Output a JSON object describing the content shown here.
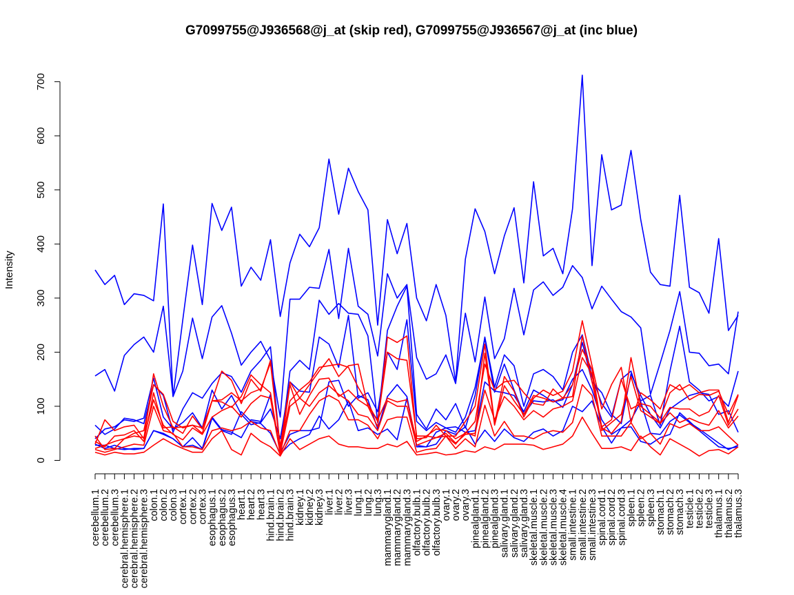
{
  "chart_data": {
    "type": "line",
    "title": "G7099755@J936568@j_at (skip red), G7099755@J936567@j_at (inc blue)",
    "xlabel": "",
    "ylabel": "Intensity",
    "ylim": [
      0,
      710
    ],
    "yticks": [
      0,
      100,
      200,
      300,
      400,
      500,
      600,
      700
    ],
    "grid": false,
    "legend": "none",
    "colors": {
      "skip": "#ff0000",
      "inc": "#0000ff",
      "axis": "#000000"
    },
    "categories": [
      "cerebellum.1",
      "cerebellum.2",
      "cerebellum.3",
      "cerebral.hemisphere.1",
      "cerebral.hemisphere.2",
      "cerebral.hemisphere.3",
      "colon.1",
      "colon.2",
      "colon.3",
      "cortex.1",
      "cortex.2",
      "cortex.3",
      "esophagus.1",
      "esophagus.2",
      "esophagus.3",
      "heart.1",
      "heart.2",
      "heart.3",
      "hind.brain.1",
      "hind.brain.2",
      "hind.brain.3",
      "kidney.1",
      "kidney.2",
      "kidney.3",
      "liver.1",
      "liver.2",
      "liver.3",
      "lung.1",
      "lung.2",
      "lung.3",
      "mammarygland.1",
      "mammarygland.2",
      "mammarygland.3",
      "olfactory.bulb.1",
      "olfactory.bulb.2",
      "olfactory.bulb.3",
      "ovary.1",
      "ovary.2",
      "ovary.3",
      "pinealgland.1",
      "pinealgland.2",
      "pinealgland.3",
      "salivary.gland.1",
      "salivary.gland.2",
      "salivary.gland.3",
      "skeletal.muscle.1",
      "skeletal.muscle.2",
      "skeletal.muscle.3",
      "skeletal.muscle.4",
      "small.intestine.1",
      "small.intestine.2",
      "small.intestine.3",
      "spinal.cord.1",
      "spinal.cord.2",
      "spinal.cord.3",
      "spleen.1",
      "spleen.2",
      "spleen.3",
      "stomach.1",
      "stomach.2",
      "stomach.3",
      "testicle.1",
      "testicle.2",
      "testicle.3",
      "thalamus.1",
      "thalamus.2",
      "thalamus.3"
    ],
    "x_tick_labels": [
      "cerebellum.1",
      "cerebellum.2",
      "cerebellum.3",
      "cerebral.hemisphere.1",
      "cerebral.hemisphere.2",
      "cerebral.hemisphere.3",
      "colon.1",
      "colon.2",
      "colon.3",
      "cortex.1",
      "cortex.2",
      "cortex.3",
      "esophagus.1",
      "esophagus.2",
      "esophagus.3",
      "heart.1",
      "heart.2",
      "heart.3",
      "hind.brain.1",
      "hind.brain.2",
      "hind.brain.3",
      "kidney.1",
      "kidney.2",
      "kidney.3",
      "liver.1",
      "liver.2",
      "liver.3",
      "lung.1",
      "lung.2",
      "lung.3",
      "mammarygland.1",
      "mammarygland.2",
      "mammarygland.3",
      "olfactory.bulb.1",
      "olfactory.bulb.2",
      "olfactory.bulb.3",
      "ovary.1",
      "ovary.2",
      "ovary.3",
      "pinealgland.1",
      "pinealgland.2",
      "pinealgland.3",
      "salivary.gland.1",
      "salivary.gland.2",
      "salivary.gland.3",
      "skeletal.muscle.1",
      "skeletal.muscle.2",
      "skeletal.muscle.3",
      "skeletal.muscle.4",
      "small.intestine.1",
      "small.intestine.2",
      "small.intestine.3",
      "spinal.cord.1",
      "spinal.cord.2",
      "spinal.cord.3",
      "spleen.1",
      "spleen.2",
      "spleen.3",
      "stomach.1",
      "stomach.2",
      "stomach.3",
      "testicle.1",
      "testicle.2",
      "testicle.3",
      "thalamus.1",
      "thalamus.2",
      "thalamus.3"
    ],
    "series": [
      {
        "group": "inc",
        "values": [
          352,
          325,
          342,
          288,
          308,
          305,
          295,
          474,
          118,
          260,
          398,
          288,
          475,
          425,
          468,
          322,
          357,
          333,
          408,
          266,
          365,
          418,
          395,
          430,
          557,
          455,
          540,
          497,
          463,
          250,
          445,
          382,
          438,
          300,
          258,
          325,
          268,
          145,
          372,
          465,
          423,
          345,
          415,
          467,
          328,
          515,
          378,
          392,
          345,
          465,
          712,
          360,
          565,
          463,
          472,
          573,
          445,
          348,
          325,
          322,
          490,
          320,
          310,
          272,
          410,
          240,
          268
        ]
      },
      {
        "group": "inc",
        "values": [
          156,
          168,
          128,
          194,
          214,
          228,
          200,
          285,
          118,
          165,
          263,
          188,
          265,
          286,
          235,
          176,
          200,
          220,
          185,
          80,
          298,
          298,
          320,
          318,
          390,
          262,
          392,
          285,
          270,
          193,
          345,
          300,
          325,
          190,
          150,
          160,
          195,
          142,
          272,
          182,
          302,
          188,
          225,
          318,
          232,
          315,
          330,
          305,
          320,
          360,
          338,
          280,
          322,
          298,
          275,
          265,
          245,
          122,
          180,
          240,
          312,
          200,
          198,
          175,
          178,
          160,
          275
        ]
      },
      {
        "group": "inc",
        "values": [
          65,
          48,
          58,
          78,
          75,
          68,
          140,
          120,
          52,
          95,
          125,
          115,
          142,
          162,
          155,
          126,
          165,
          185,
          210,
          20,
          165,
          185,
          168,
          296,
          270,
          290,
          272,
          270,
          230,
          70,
          240,
          285,
          322,
          85,
          58,
          95,
          75,
          105,
          60,
          120,
          228,
          135,
          195,
          175,
          100,
          160,
          168,
          155,
          130,
          200,
          232,
          155,
          105,
          80,
          150,
          165,
          110,
          120,
          65,
          165,
          248,
          145,
          130,
          110,
          118,
          100,
          165
        ]
      },
      {
        "group": "inc",
        "values": [
          40,
          58,
          62,
          75,
          72,
          78,
          152,
          80,
          58,
          70,
          88,
          60,
          130,
          95,
          120,
          85,
          66,
          70,
          95,
          40,
          145,
          128,
          126,
          228,
          215,
          172,
          268,
          115,
          125,
          90,
          200,
          168,
          260,
          72,
          55,
          70,
          60,
          52,
          80,
          135,
          225,
          126,
          178,
          130,
          85,
          110,
          108,
          112,
          98,
          140,
          218,
          145,
          125,
          85,
          68,
          160,
          120,
          85,
          60,
          95,
          108,
          120,
          125,
          122,
          85,
          92,
          52
        ]
      },
      {
        "group": "inc",
        "values": [
          30,
          22,
          28,
          22,
          20,
          22,
          55,
          48,
          40,
          25,
          42,
          22,
          80,
          57,
          52,
          42,
          75,
          72,
          122,
          14,
          48,
          55,
          55,
          60,
          145,
          148,
          100,
          120,
          112,
          58,
          118,
          140,
          118,
          28,
          25,
          52,
          60,
          62,
          52,
          55,
          145,
          128,
          125,
          120,
          90,
          130,
          120,
          108,
          112,
          150,
          168,
          130,
          75,
          48,
          60,
          75,
          108,
          50,
          48,
          72,
          84,
          70,
          58,
          45,
          32,
          20,
          28
        ]
      },
      {
        "group": "inc",
        "values": [
          28,
          28,
          22,
          20,
          22,
          22,
          55,
          50,
          40,
          25,
          28,
          20,
          78,
          55,
          48,
          90,
          72,
          68,
          50,
          12,
          30,
          40,
          48,
          82,
          58,
          75,
          110,
          55,
          60,
          48,
          58,
          38,
          115,
          25,
          25,
          30,
          55,
          48,
          62,
          30,
          56,
          35,
          58,
          42,
          35,
          52,
          58,
          45,
          55,
          100,
          90,
          110,
          62,
          32,
          60,
          62,
          35,
          30,
          42,
          48,
          88,
          72,
          55,
          40,
          25,
          22,
          25
        ]
      },
      {
        "group": "skip",
        "values": [
          22,
          28,
          35,
          40,
          50,
          55,
          140,
          122,
          72,
          60,
          65,
          50,
          110,
          165,
          148,
          105,
          150,
          128,
          185,
          25,
          145,
          115,
          140,
          165,
          188,
          155,
          175,
          178,
          100,
          62,
          228,
          218,
          230,
          40,
          42,
          65,
          45,
          45,
          72,
          100,
          215,
          68,
          155,
          128,
          80,
          115,
          130,
          120,
          128,
          165,
          258,
          175,
          95,
          140,
          172,
          70,
          125,
          112,
          95,
          140,
          130,
          140,
          125,
          130,
          130,
          70,
          120
        ]
      },
      {
        "group": "skip",
        "values": [
          30,
          75,
          55,
          62,
          65,
          40,
          160,
          100,
          60,
          62,
          65,
          60,
          110,
          112,
          125,
          110,
          125,
          132,
          180,
          22,
          110,
          130,
          145,
          172,
          175,
          178,
          172,
          135,
          105,
          72,
          200,
          188,
          185,
          45,
          45,
          58,
          55,
          40,
          50,
          72,
          178,
          130,
          145,
          148,
          125,
          105,
          102,
          132,
          115,
          118,
          230,
          145,
          62,
          75,
          150,
          95,
          105,
          100,
          78,
          125,
          140,
          112,
          122,
          120,
          128,
          85,
          122
        ]
      },
      {
        "group": "skip",
        "values": [
          35,
          25,
          45,
          47,
          55,
          35,
          125,
          60,
          62,
          50,
          82,
          58,
          110,
          108,
          98,
          118,
          158,
          140,
          125,
          15,
          140,
          85,
          120,
          150,
          152,
          118,
          130,
          112,
          100,
          75,
          115,
          108,
          112,
          35,
          45,
          42,
          45,
          30,
          52,
          45,
          198,
          65,
          138,
          110,
          85,
          120,
          115,
          108,
          115,
          140,
          205,
          168,
          60,
          50,
          72,
          190,
          100,
          85,
          70,
          98,
          95,
          95,
          82,
          90,
          120,
          65,
          95
        ]
      },
      {
        "group": "skip",
        "values": [
          45,
          20,
          22,
          40,
          45,
          42,
          112,
          65,
          48,
          38,
          60,
          48,
          80,
          92,
          100,
          80,
          105,
          120,
          115,
          12,
          100,
          115,
          100,
          125,
          138,
          122,
          110,
          85,
          80,
          55,
          110,
          100,
          100,
          28,
          35,
          42,
          50,
          32,
          48,
          50,
          130,
          75,
          118,
          100,
          75,
          92,
          80,
          95,
          100,
          110,
          190,
          160,
          55,
          70,
          85,
          155,
          92,
          80,
          68,
          88,
          70,
          78,
          70,
          65,
          92,
          60,
          82
        ]
      },
      {
        "group": "skip",
        "values": [
          20,
          15,
          20,
          25,
          30,
          28,
          100,
          55,
          50,
          25,
          25,
          20,
          55,
          60,
          55,
          60,
          72,
          60,
          55,
          10,
          55,
          55,
          85,
          110,
          120,
          110,
          75,
          75,
          65,
          40,
          75,
          80,
          80,
          15,
          20,
          22,
          45,
          22,
          40,
          25,
          102,
          45,
          72,
          45,
          45,
          40,
          50,
          55,
          52,
          70,
          140,
          120,
          45,
          45,
          45,
          70,
          40,
          50,
          30,
          68,
          60,
          68,
          55,
          55,
          62,
          45,
          28
        ]
      },
      {
        "group": "skip",
        "values": [
          15,
          10,
          15,
          12,
          12,
          15,
          28,
          40,
          30,
          22,
          15,
          15,
          40,
          55,
          20,
          10,
          50,
          35,
          25,
          8,
          40,
          20,
          30,
          40,
          45,
          30,
          25,
          25,
          22,
          22,
          30,
          25,
          35,
          10,
          12,
          15,
          10,
          12,
          18,
          15,
          25,
          20,
          30,
          30,
          30,
          28,
          20,
          25,
          30,
          45,
          80,
          50,
          22,
          22,
          25,
          18,
          45,
          25,
          10,
          40,
          30,
          20,
          8,
          18,
          20,
          12,
          25
        ]
      }
    ]
  }
}
